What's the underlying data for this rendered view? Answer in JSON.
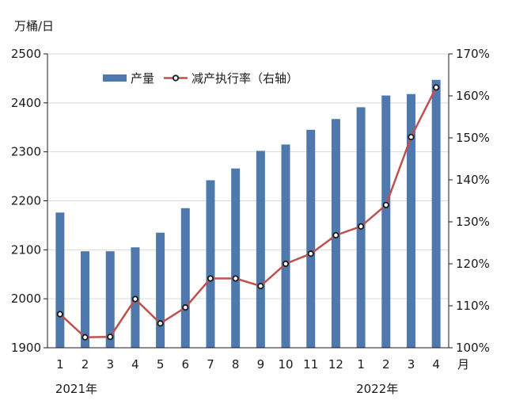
{
  "chart_data": {
    "type": "bar",
    "left_unit": "万桶/日",
    "x_unit": "月",
    "categories": [
      "1",
      "2",
      "3",
      "4",
      "5",
      "6",
      "7",
      "8",
      "9",
      "10",
      "11",
      "12",
      "1",
      "2",
      "3",
      "4"
    ],
    "year_labels": [
      {
        "label": "2021年",
        "index": 0
      },
      {
        "label": "2022年",
        "index": 12
      }
    ],
    "series": [
      {
        "name": "产量",
        "type": "bar",
        "axis": "left",
        "color": "#4f79ad",
        "values": [
          2176,
          2097,
          2097,
          2105,
          2135,
          2185,
          2242,
          2266,
          2302,
          2315,
          2345,
          2367,
          2391,
          2415,
          2418,
          2447
        ]
      },
      {
        "name": "减产执行率（右轴）",
        "type": "line",
        "axis": "right",
        "color": "#c0504d",
        "values": [
          108,
          102.5,
          102.6,
          111.6,
          105.8,
          109.6,
          116.5,
          116.5,
          114.7,
          120,
          122.4,
          126.8,
          128.9,
          134,
          150.2,
          162
        ]
      }
    ],
    "y_left": {
      "min": 1900,
      "max": 2500,
      "ticks": [
        1900,
        2000,
        2100,
        2200,
        2300,
        2400,
        2500
      ]
    },
    "y_right": {
      "min": 100,
      "max": 170,
      "ticks": [
        "100%",
        "110%",
        "120%",
        "130%",
        "140%",
        "150%",
        "160%",
        "170%"
      ]
    },
    "grid": true,
    "legend_position": "top"
  }
}
